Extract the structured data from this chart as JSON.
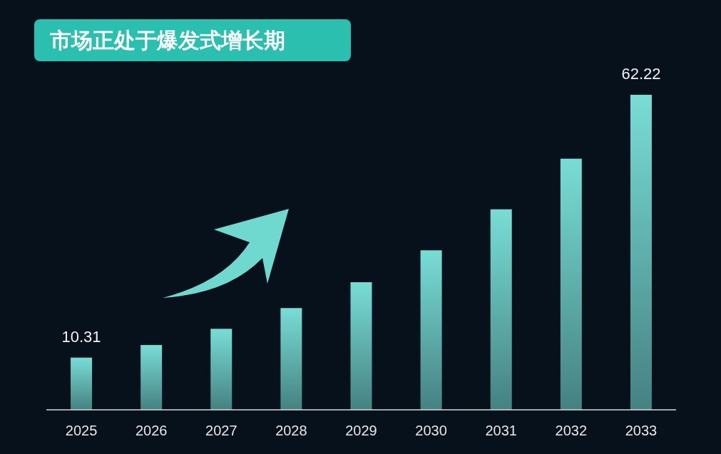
{
  "chart_data": {
    "type": "bar",
    "title": "市场正处于爆发式增长期",
    "categories": [
      "2025",
      "2026",
      "2027",
      "2028",
      "2029",
      "2030",
      "2031",
      "2032",
      "2033"
    ],
    "values": [
      10.31,
      12.8,
      16.0,
      20.1,
      25.2,
      31.5,
      39.6,
      49.6,
      62.22
    ],
    "value_labels": [
      "10.31",
      null,
      null,
      null,
      null,
      null,
      null,
      null,
      "62.22"
    ],
    "color": "#78ddd5"
  }
}
